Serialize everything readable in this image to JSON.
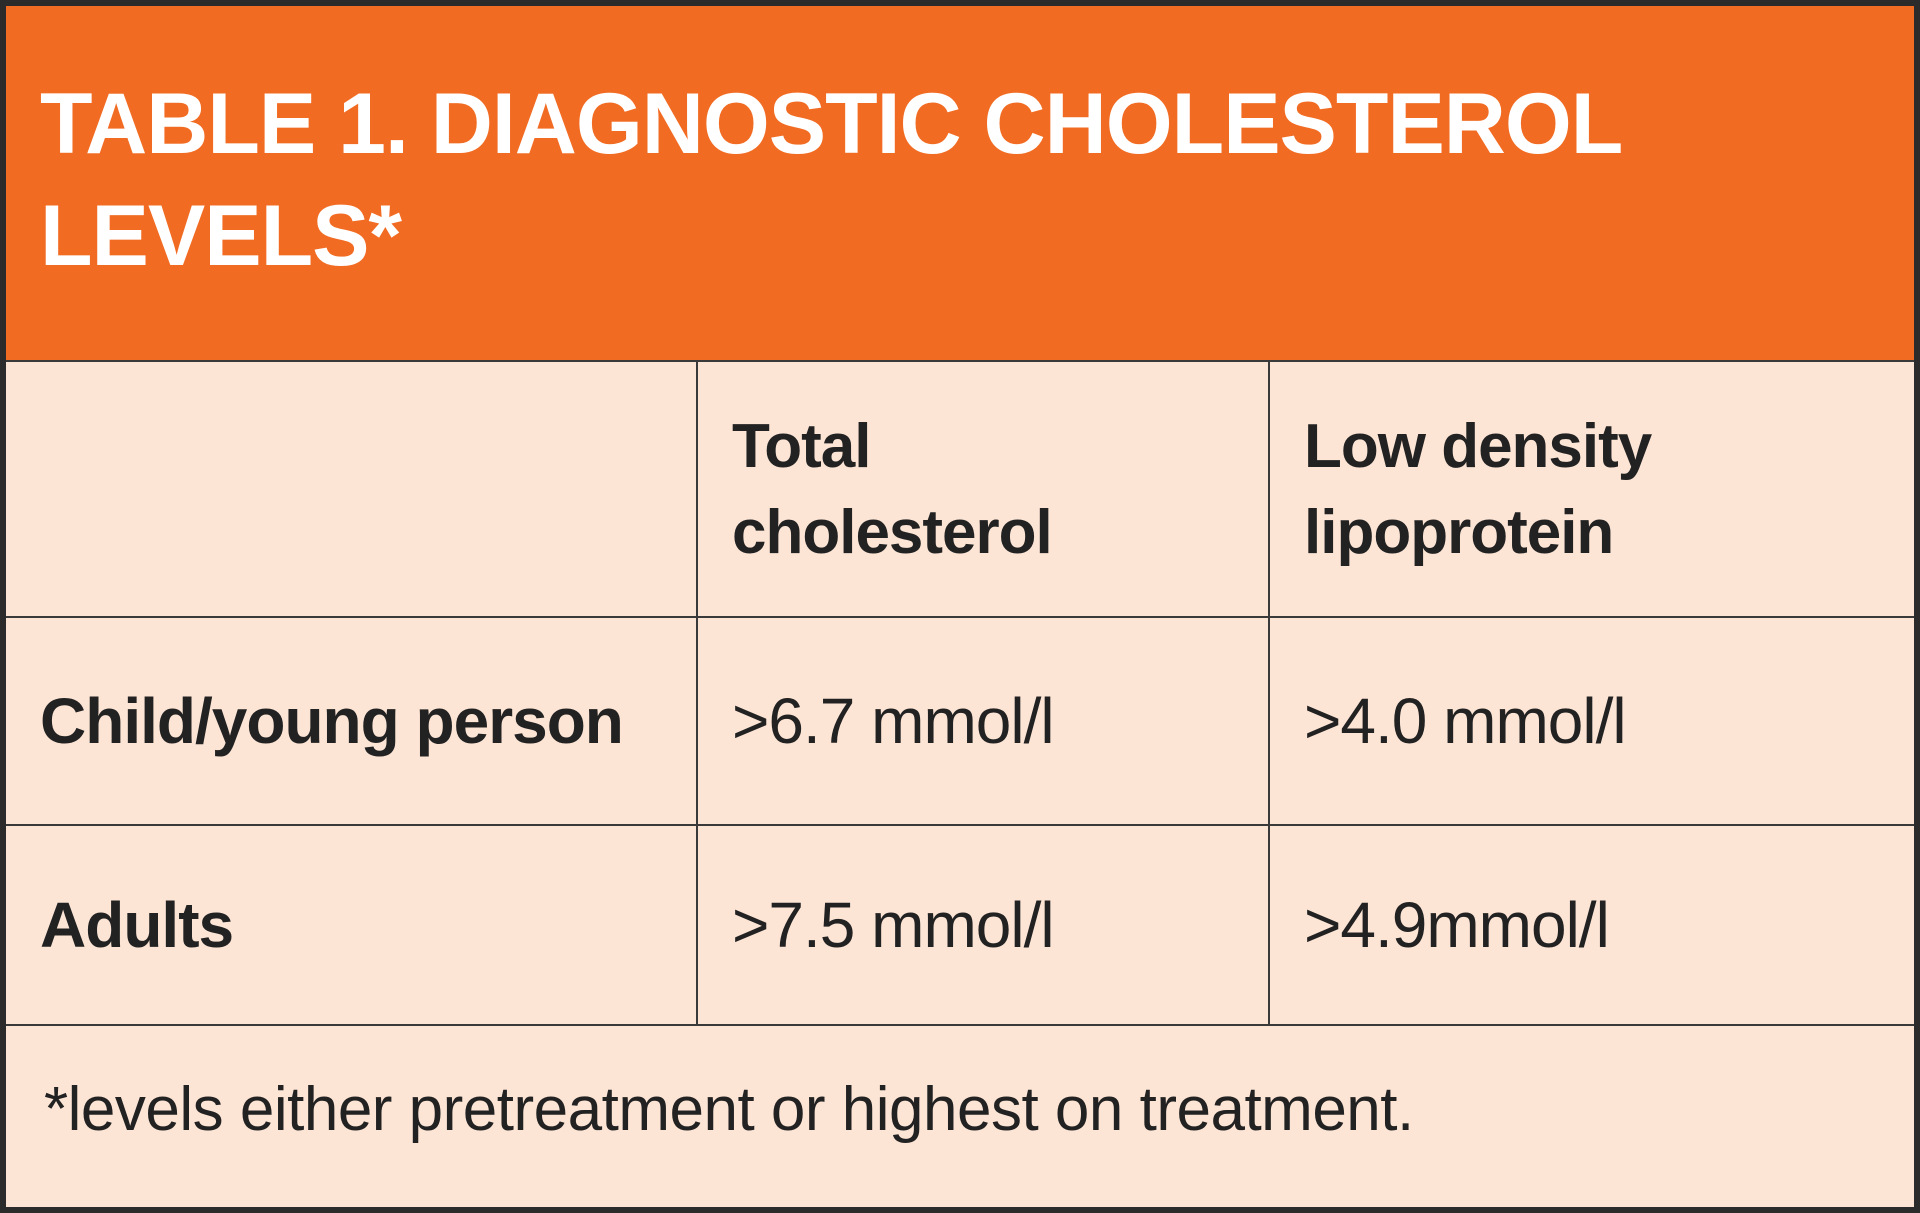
{
  "table": {
    "title": "TABLE 1.  DIAGNOSTIC CHOLESTEROL\nLEVELS*",
    "columns": [
      "",
      "Total\ncholesterol",
      "Low density\nlipoprotein"
    ],
    "rows": [
      {
        "label": "Child/young person",
        "total_cholesterol": ">6.7 mmol/l",
        "ldl": ">4.0 mmol/l"
      },
      {
        "label": "Adults",
        "total_cholesterol": ">7.5 mmol/l",
        "ldl": ">4.9mmol/l"
      }
    ],
    "footnote": "*levels either pretreatment or highest on treatment.",
    "colors": {
      "header_bg": "#f26b22",
      "body_bg": "#fde5d6",
      "border": "#2b2b2b",
      "title_text": "#ffffff",
      "body_text": "#222222"
    }
  }
}
